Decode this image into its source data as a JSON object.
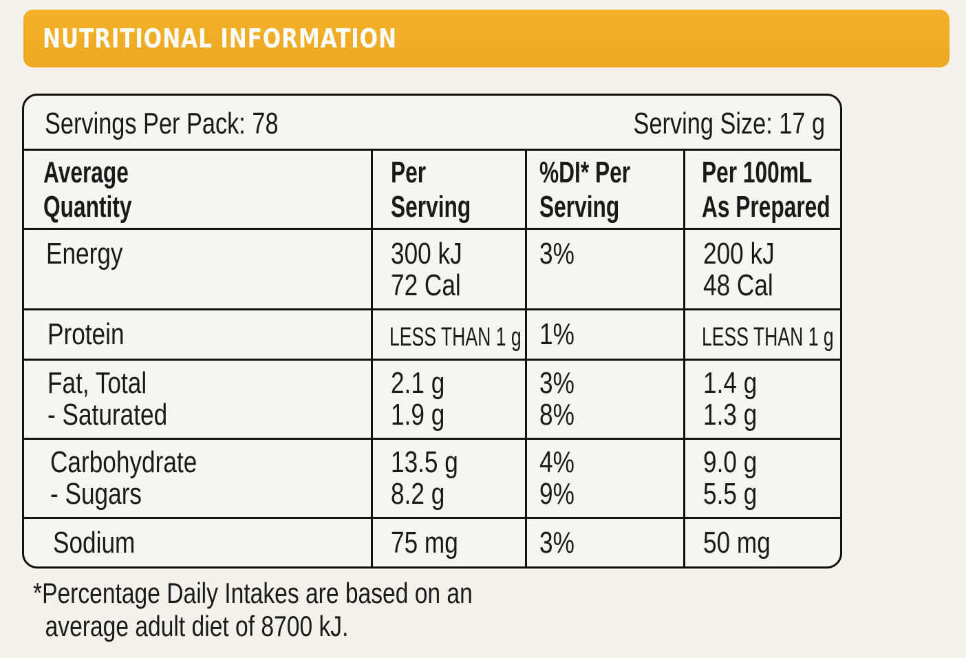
{
  "banner": {
    "title": "NUTRITIONAL INFORMATION"
  },
  "panel": {
    "servings_per_pack": "Servings Per Pack: 78",
    "serving_size": "Serving Size: 17 g"
  },
  "table": {
    "headers": [
      "Average\nQuantity",
      "Per\nServing",
      "%DI* Per\nServing",
      "Per 100mL\nAs Prepared"
    ],
    "rows": [
      [
        "Energy",
        "300 kJ\n72 Cal",
        "3%",
        "200 kJ\n48 Cal"
      ],
      [
        "Protein",
        "LESS THAN 1 g",
        "1%",
        "LESS THAN 1 g"
      ],
      [
        "Fat, Total\n    - Saturated",
        "2.1 g\n1.9 g",
        "3%\n8%",
        "1.4 g\n1.3 g"
      ],
      [
        "Carbohydrate\n    - Sugars",
        "13.5 g\n8.2 g",
        "4%\n9%",
        "9.0 g\n5.5 g"
      ],
      [
        "Sodium",
        "75 mg",
        "3%",
        "50 mg"
      ]
    ]
  },
  "footnote": {
    "line1": "*Percentage Daily Intakes are based on an",
    "line2": "average adult diet of 8700 kJ."
  }
}
